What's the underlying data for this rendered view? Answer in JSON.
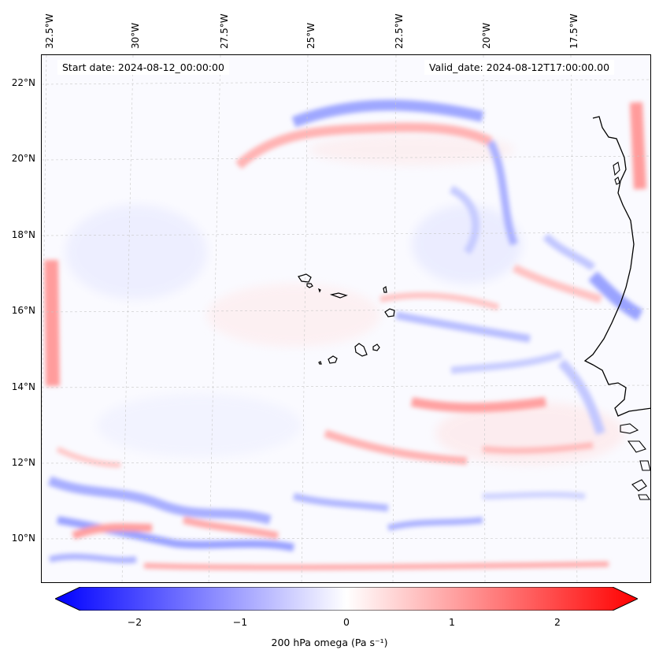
{
  "map": {
    "start_date": "Start date: 2024-08-12_00:00:00",
    "valid_date": "Valid_date: 2024-08-12T17:00:00.00",
    "lon_labels": [
      "32.5°W",
      "30°W",
      "27.5°W",
      "25°W",
      "22.5°W",
      "20°W",
      "17.5°W"
    ],
    "lat_labels": [
      "22°N",
      "20°N",
      "18°N",
      "16°N",
      "14°N",
      "12°N",
      "10°N"
    ],
    "gridlines": true,
    "colormap": "bwr",
    "colors": {
      "negative": "#0000ff",
      "zero": "#ffffff",
      "positive": "#ff0000",
      "coast": "#000000"
    }
  },
  "colorbar": {
    "label": "200 hPa omega (Pa s⁻¹)",
    "ticks": [
      "−2",
      "−1",
      "0",
      "1",
      "2"
    ],
    "min": -2.6,
    "max": 2.6,
    "extend": "both"
  }
}
